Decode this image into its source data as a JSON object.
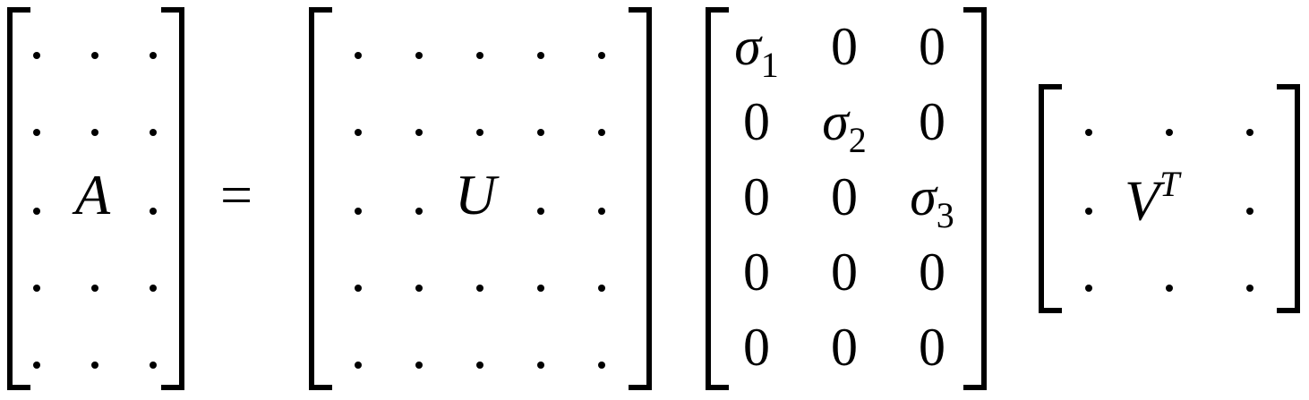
{
  "equation": {
    "lhs_label": "A",
    "equals": "=",
    "u_label": "U",
    "v_label": "V",
    "v_superscript": "T"
  },
  "sigma": {
    "rows": [
      [
        {
          "base": "σ",
          "sub": "1"
        },
        {
          "base": "0",
          "sub": ""
        },
        {
          "base": "0",
          "sub": ""
        }
      ],
      [
        {
          "base": "0",
          "sub": ""
        },
        {
          "base": "σ",
          "sub": "2"
        },
        {
          "base": "0",
          "sub": ""
        }
      ],
      [
        {
          "base": "0",
          "sub": ""
        },
        {
          "base": "0",
          "sub": ""
        },
        {
          "base": "σ",
          "sub": "3"
        }
      ],
      [
        {
          "base": "0",
          "sub": ""
        },
        {
          "base": "0",
          "sub": ""
        },
        {
          "base": "0",
          "sub": ""
        }
      ],
      [
        {
          "base": "0",
          "sub": ""
        },
        {
          "base": "0",
          "sub": ""
        },
        {
          "base": "0",
          "sub": ""
        }
      ]
    ]
  }
}
